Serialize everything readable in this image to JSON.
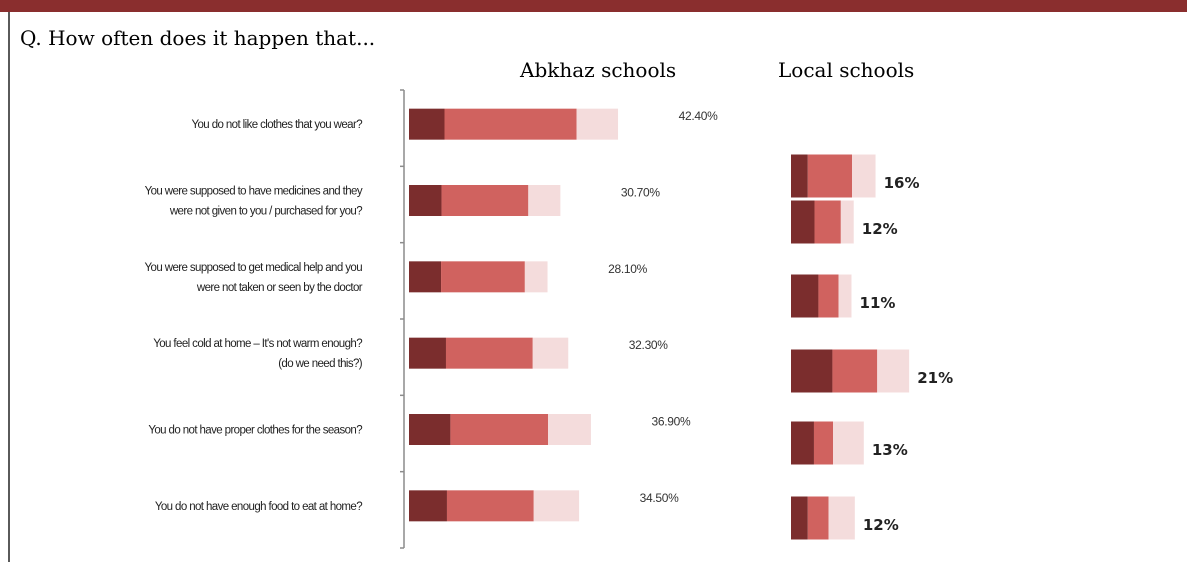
{
  "question": "Q. How often does it happen that...",
  "colors": {
    "frame": "#8a2e2e",
    "dark": "#7b2d2d",
    "mid": "#d0625f",
    "light": "#f4dcdc"
  },
  "chart_data": {
    "type": "bar",
    "orientation": "horizontal",
    "stacked": true,
    "categories": [
      [
        "You do not like clothes that you wear?"
      ],
      [
        "You were supposed to have medicines and they",
        "were not given to you / purchased for you?"
      ],
      [
        "You were supposed to get medical help and you",
        "were not taken or seen by the doctor"
      ],
      [
        "You feel cold at home – It's not warm enough?",
        "(do we need this?)"
      ],
      [
        "You do not have proper clothes for the season?"
      ],
      [
        "You do not have enough food to eat at home?"
      ]
    ],
    "groups": [
      {
        "title": "Abkhaz schools",
        "labels": [
          "42.40%",
          "30.70%",
          "28.10%",
          "32.30%",
          "36.90%",
          "34.50%"
        ],
        "segments": [
          [
            7.2,
            26.8,
            8.4
          ],
          [
            6.6,
            17.6,
            6.5
          ],
          [
            6.5,
            17.0,
            4.6
          ],
          [
            7.5,
            17.6,
            7.2
          ],
          [
            8.4,
            19.8,
            8.7
          ],
          [
            7.7,
            17.6,
            9.2
          ]
        ]
      },
      {
        "title": "Local schools",
        "labels": [
          "16%",
          "12%",
          11,
          "21%",
          "13%",
          "12%"
        ],
        "segments": [
          [
            3.0,
            7.9,
            4.2
          ],
          [
            4.2,
            4.7,
            2.3
          ],
          [
            4.9,
            3.6,
            2.3
          ],
          [
            7.4,
            8.0,
            5.7
          ],
          [
            4.1,
            3.4,
            5.5
          ],
          [
            3.0,
            3.7,
            4.7
          ]
        ]
      }
    ]
  }
}
